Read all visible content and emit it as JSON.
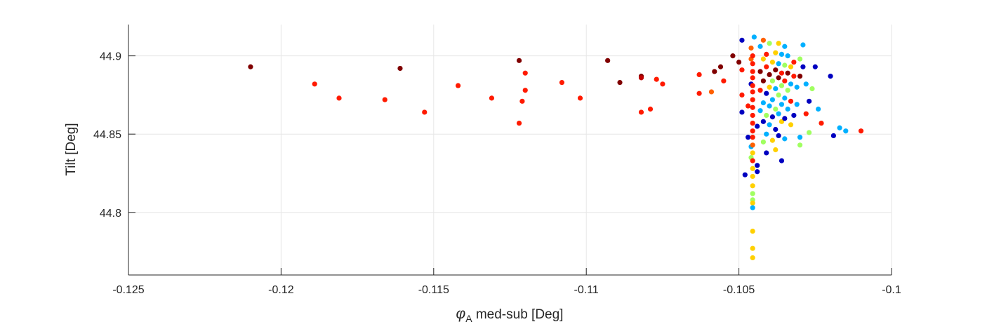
{
  "chart_data": {
    "type": "scatter",
    "title": "",
    "xlabel_symbol": "φ",
    "xlabel_subscript": "A",
    "xlabel_rest": " med-sub [Deg]",
    "ylabel": "Tilt [Deg]",
    "xlim": [
      -0.125,
      -0.1
    ],
    "ylim": [
      44.76,
      44.92
    ],
    "xticks": [
      -0.125,
      -0.12,
      -0.115,
      -0.11,
      -0.105,
      -0.1
    ],
    "xtick_labels": [
      "-0.125",
      "-0.12",
      "-0.115",
      "-0.11",
      "-0.105",
      "-0.1"
    ],
    "yticks": [
      44.8,
      44.85,
      44.9
    ],
    "ytick_labels": [
      "44.8",
      "44.85",
      "44.9"
    ],
    "grid": true,
    "legend": "none",
    "colormap": "jet",
    "points": [
      {
        "x": -0.121,
        "y": 44.893,
        "color": "#800000"
      },
      {
        "x": -0.1189,
        "y": 44.882,
        "color": "#ff1a00"
      },
      {
        "x": -0.1181,
        "y": 44.873,
        "color": "#ff1a00"
      },
      {
        "x": -0.1166,
        "y": 44.872,
        "color": "#ff1a00"
      },
      {
        "x": -0.1161,
        "y": 44.892,
        "color": "#800000"
      },
      {
        "x": -0.1153,
        "y": 44.864,
        "color": "#ff1a00"
      },
      {
        "x": -0.1142,
        "y": 44.881,
        "color": "#ff1a00"
      },
      {
        "x": -0.1131,
        "y": 44.873,
        "color": "#ff1a00"
      },
      {
        "x": -0.1122,
        "y": 44.897,
        "color": "#800000"
      },
      {
        "x": -0.1122,
        "y": 44.857,
        "color": "#ff1a00"
      },
      {
        "x": -0.1121,
        "y": 44.871,
        "color": "#ff1a00"
      },
      {
        "x": -0.112,
        "y": 44.878,
        "color": "#ff1a00"
      },
      {
        "x": -0.112,
        "y": 44.889,
        "color": "#ff1a00"
      },
      {
        "x": -0.1108,
        "y": 44.883,
        "color": "#ff1a00"
      },
      {
        "x": -0.1102,
        "y": 44.873,
        "color": "#ff1a00"
      },
      {
        "x": -0.1093,
        "y": 44.897,
        "color": "#800000"
      },
      {
        "x": -0.1089,
        "y": 44.883,
        "color": "#800000"
      },
      {
        "x": -0.1082,
        "y": 44.887,
        "color": "#800000"
      },
      {
        "x": -0.1082,
        "y": 44.886,
        "color": "#c00000"
      },
      {
        "x": -0.1082,
        "y": 44.864,
        "color": "#ff1a00"
      },
      {
        "x": -0.1079,
        "y": 44.866,
        "color": "#ff1a00"
      },
      {
        "x": -0.1077,
        "y": 44.885,
        "color": "#ff1a00"
      },
      {
        "x": -0.1075,
        "y": 44.882,
        "color": "#ff1a00"
      },
      {
        "x": -0.1063,
        "y": 44.876,
        "color": "#ff1a00"
      },
      {
        "x": -0.1063,
        "y": 44.888,
        "color": "#ff1a00"
      },
      {
        "x": -0.1059,
        "y": 44.877,
        "color": "#ff6000"
      },
      {
        "x": -0.1058,
        "y": 44.89,
        "color": "#800000"
      },
      {
        "x": -0.1056,
        "y": 44.893,
        "color": "#800000"
      },
      {
        "x": -0.1055,
        "y": 44.884,
        "color": "#ff1a00"
      },
      {
        "x": -0.1052,
        "y": 44.9,
        "color": "#800000"
      },
      {
        "x": -0.105,
        "y": 44.896,
        "color": "#800000"
      },
      {
        "x": -0.1049,
        "y": 44.891,
        "color": "#ff1a00"
      },
      {
        "x": -0.1049,
        "y": 44.875,
        "color": "#ff1a00"
      },
      {
        "x": -0.1049,
        "y": 44.864,
        "color": "#0000c0"
      },
      {
        "x": -0.1049,
        "y": 44.91,
        "color": "#0000c0"
      },
      {
        "x": -0.1048,
        "y": 44.824,
        "color": "#0000c0"
      },
      {
        "x": -0.1047,
        "y": 44.868,
        "color": "#ff1a00"
      },
      {
        "x": -0.1047,
        "y": 44.848,
        "color": "#0000c0"
      },
      {
        "x": -0.1046,
        "y": 44.905,
        "color": "#ff6000"
      },
      {
        "x": -0.1046,
        "y": 44.898,
        "color": "#ff6000"
      },
      {
        "x": -0.1046,
        "y": 44.842,
        "color": "#00b0ff"
      },
      {
        "x": -0.1046,
        "y": 44.835,
        "color": "#a0ff60"
      },
      {
        "x": -0.1046,
        "y": 44.882,
        "color": "#0000c0"
      },
      {
        "x": -0.10455,
        "y": 44.9,
        "color": "#ff1a00"
      },
      {
        "x": -0.10455,
        "y": 44.895,
        "color": "#ff1a00"
      },
      {
        "x": -0.10455,
        "y": 44.89,
        "color": "#ff1a00"
      },
      {
        "x": -0.10455,
        "y": 44.886,
        "color": "#ff1a00"
      },
      {
        "x": -0.10455,
        "y": 44.881,
        "color": "#ff1a00"
      },
      {
        "x": -0.10455,
        "y": 44.877,
        "color": "#ff1a00"
      },
      {
        "x": -0.10455,
        "y": 44.872,
        "color": "#ff1a00"
      },
      {
        "x": -0.10455,
        "y": 44.867,
        "color": "#ff1a00"
      },
      {
        "x": -0.10455,
        "y": 44.862,
        "color": "#ff1a00"
      },
      {
        "x": -0.10455,
        "y": 44.857,
        "color": "#ff1a00"
      },
      {
        "x": -0.10455,
        "y": 44.852,
        "color": "#ff1a00"
      },
      {
        "x": -0.10455,
        "y": 44.848,
        "color": "#ff1a00"
      },
      {
        "x": -0.10455,
        "y": 44.843,
        "color": "#ff6000"
      },
      {
        "x": -0.10455,
        "y": 44.838,
        "color": "#ffd000"
      },
      {
        "x": -0.10455,
        "y": 44.833,
        "color": "#ff1a00"
      },
      {
        "x": -0.10455,
        "y": 44.828,
        "color": "#ffd000"
      },
      {
        "x": -0.10455,
        "y": 44.823,
        "color": "#ffd000"
      },
      {
        "x": -0.10455,
        "y": 44.817,
        "color": "#ffd000"
      },
      {
        "x": -0.10455,
        "y": 44.812,
        "color": "#a0ff60"
      },
      {
        "x": -0.10455,
        "y": 44.808,
        "color": "#a0ff60"
      },
      {
        "x": -0.10455,
        "y": 44.806,
        "color": "#ffd000"
      },
      {
        "x": -0.10455,
        "y": 44.803,
        "color": "#00b0ff"
      },
      {
        "x": -0.10455,
        "y": 44.788,
        "color": "#ffd000"
      },
      {
        "x": -0.10455,
        "y": 44.777,
        "color": "#ffd000"
      },
      {
        "x": -0.10455,
        "y": 44.771,
        "color": "#ffd000"
      },
      {
        "x": -0.1045,
        "y": 44.912,
        "color": "#00b0ff"
      },
      {
        "x": -0.1044,
        "y": 44.83,
        "color": "#0000c0"
      },
      {
        "x": -0.1044,
        "y": 44.826,
        "color": "#0000c0"
      },
      {
        "x": -0.1044,
        "y": 44.855,
        "color": "#0000c0"
      },
      {
        "x": -0.1043,
        "y": 44.906,
        "color": "#00b0ff"
      },
      {
        "x": -0.1043,
        "y": 44.89,
        "color": "#800000"
      },
      {
        "x": -0.1043,
        "y": 44.878,
        "color": "#ff1a00"
      },
      {
        "x": -0.1043,
        "y": 44.865,
        "color": "#00b0ff"
      },
      {
        "x": -0.1042,
        "y": 44.91,
        "color": "#ff6000"
      },
      {
        "x": -0.1042,
        "y": 44.898,
        "color": "#ffd000"
      },
      {
        "x": -0.1042,
        "y": 44.884,
        "color": "#800000"
      },
      {
        "x": -0.1042,
        "y": 44.87,
        "color": "#00b0ff"
      },
      {
        "x": -0.1042,
        "y": 44.858,
        "color": "#0000c0"
      },
      {
        "x": -0.1042,
        "y": 44.845,
        "color": "#a0ff60"
      },
      {
        "x": -0.1041,
        "y": 44.901,
        "color": "#ff1a00"
      },
      {
        "x": -0.1041,
        "y": 44.893,
        "color": "#ff1a00"
      },
      {
        "x": -0.1041,
        "y": 44.876,
        "color": "#0000c0"
      },
      {
        "x": -0.1041,
        "y": 44.862,
        "color": "#a0ff60"
      },
      {
        "x": -0.1041,
        "y": 44.85,
        "color": "#00b0ff"
      },
      {
        "x": -0.1041,
        "y": 44.838,
        "color": "#0000c0"
      },
      {
        "x": -0.104,
        "y": 44.908,
        "color": "#a0ff60"
      },
      {
        "x": -0.104,
        "y": 44.888,
        "color": "#800000"
      },
      {
        "x": -0.104,
        "y": 44.88,
        "color": "#ffd000"
      },
      {
        "x": -0.104,
        "y": 44.868,
        "color": "#00b0ff"
      },
      {
        "x": -0.104,
        "y": 44.856,
        "color": "#00b0ff"
      },
      {
        "x": -0.1039,
        "y": 44.896,
        "color": "#ffd000"
      },
      {
        "x": -0.1039,
        "y": 44.884,
        "color": "#a0ff60"
      },
      {
        "x": -0.1039,
        "y": 44.872,
        "color": "#00b0ff"
      },
      {
        "x": -0.1039,
        "y": 44.861,
        "color": "#0000c0"
      },
      {
        "x": -0.1039,
        "y": 44.846,
        "color": "#ffd000"
      },
      {
        "x": -0.1038,
        "y": 44.902,
        "color": "#ffd000"
      },
      {
        "x": -0.1038,
        "y": 44.891,
        "color": "#800000"
      },
      {
        "x": -0.1038,
        "y": 44.879,
        "color": "#00b0ff"
      },
      {
        "x": -0.1038,
        "y": 44.866,
        "color": "#a0ff60"
      },
      {
        "x": -0.1038,
        "y": 44.853,
        "color": "#0000c0"
      },
      {
        "x": -0.1038,
        "y": 44.84,
        "color": "#ffd000"
      },
      {
        "x": -0.1037,
        "y": 44.908,
        "color": "#ffd000"
      },
      {
        "x": -0.1037,
        "y": 44.895,
        "color": "#00b0ff"
      },
      {
        "x": -0.1037,
        "y": 44.886,
        "color": "#800000"
      },
      {
        "x": -0.1037,
        "y": 44.875,
        "color": "#a0ff60"
      },
      {
        "x": -0.1037,
        "y": 44.863,
        "color": "#00b0ff"
      },
      {
        "x": -0.1037,
        "y": 44.849,
        "color": "#0000c0"
      },
      {
        "x": -0.1036,
        "y": 44.901,
        "color": "#00b0ff"
      },
      {
        "x": -0.1036,
        "y": 44.889,
        "color": "#ff1a00"
      },
      {
        "x": -0.1036,
        "y": 44.881,
        "color": "#a0ff60"
      },
      {
        "x": -0.1036,
        "y": 44.869,
        "color": "#00b0ff"
      },
      {
        "x": -0.1036,
        "y": 44.858,
        "color": "#ffd000"
      },
      {
        "x": -0.1036,
        "y": 44.833,
        "color": "#0000c0"
      },
      {
        "x": -0.1035,
        "y": 44.906,
        "color": "#00b0ff"
      },
      {
        "x": -0.1035,
        "y": 44.894,
        "color": "#a0ff60"
      },
      {
        "x": -0.1035,
        "y": 44.884,
        "color": "#ff1a00"
      },
      {
        "x": -0.1035,
        "y": 44.873,
        "color": "#00b0ff"
      },
      {
        "x": -0.1035,
        "y": 44.86,
        "color": "#0000c0"
      },
      {
        "x": -0.1035,
        "y": 44.847,
        "color": "#00b0ff"
      },
      {
        "x": -0.1034,
        "y": 44.9,
        "color": "#00b0ff"
      },
      {
        "x": -0.1034,
        "y": 44.889,
        "color": "#800000"
      },
      {
        "x": -0.1034,
        "y": 44.878,
        "color": "#a0ff60"
      },
      {
        "x": -0.1034,
        "y": 44.866,
        "color": "#00b0ff"
      },
      {
        "x": -0.1033,
        "y": 44.893,
        "color": "#ffd000"
      },
      {
        "x": -0.1033,
        "y": 44.882,
        "color": "#00b0ff"
      },
      {
        "x": -0.1033,
        "y": 44.871,
        "color": "#ff1a00"
      },
      {
        "x": -0.1033,
        "y": 44.856,
        "color": "#ffd000"
      },
      {
        "x": -0.1032,
        "y": 44.896,
        "color": "#ff1a00"
      },
      {
        "x": -0.1032,
        "y": 44.887,
        "color": "#ff1a00"
      },
      {
        "x": -0.1032,
        "y": 44.862,
        "color": "#0000c0"
      },
      {
        "x": -0.1031,
        "y": 44.88,
        "color": "#00b0ff"
      },
      {
        "x": -0.1031,
        "y": 44.869,
        "color": "#00b0ff"
      },
      {
        "x": -0.103,
        "y": 44.898,
        "color": "#a0ff60"
      },
      {
        "x": -0.103,
        "y": 44.887,
        "color": "#800000"
      },
      {
        "x": -0.103,
        "y": 44.848,
        "color": "#00b0ff"
      },
      {
        "x": -0.103,
        "y": 44.843,
        "color": "#a0ff60"
      },
      {
        "x": -0.1029,
        "y": 44.907,
        "color": "#00b0ff"
      },
      {
        "x": -0.1029,
        "y": 44.893,
        "color": "#0000c0"
      },
      {
        "x": -0.1028,
        "y": 44.863,
        "color": "#ff1a00"
      },
      {
        "x": -0.1028,
        "y": 44.882,
        "color": "#00b0ff"
      },
      {
        "x": -0.1027,
        "y": 44.871,
        "color": "#0000c0"
      },
      {
        "x": -0.1027,
        "y": 44.851,
        "color": "#a0ff60"
      },
      {
        "x": -0.1026,
        "y": 44.879,
        "color": "#a0ff60"
      },
      {
        "x": -0.1025,
        "y": 44.893,
        "color": "#0000c0"
      },
      {
        "x": -0.1024,
        "y": 44.866,
        "color": "#00b0ff"
      },
      {
        "x": -0.1023,
        "y": 44.857,
        "color": "#ff1a00"
      },
      {
        "x": -0.102,
        "y": 44.887,
        "color": "#0000c0"
      },
      {
        "x": -0.1019,
        "y": 44.849,
        "color": "#0000c0"
      },
      {
        "x": -0.1017,
        "y": 44.854,
        "color": "#00b0ff"
      },
      {
        "x": -0.1015,
        "y": 44.852,
        "color": "#00b0ff"
      },
      {
        "x": -0.101,
        "y": 44.852,
        "color": "#ff1a00"
      }
    ]
  }
}
